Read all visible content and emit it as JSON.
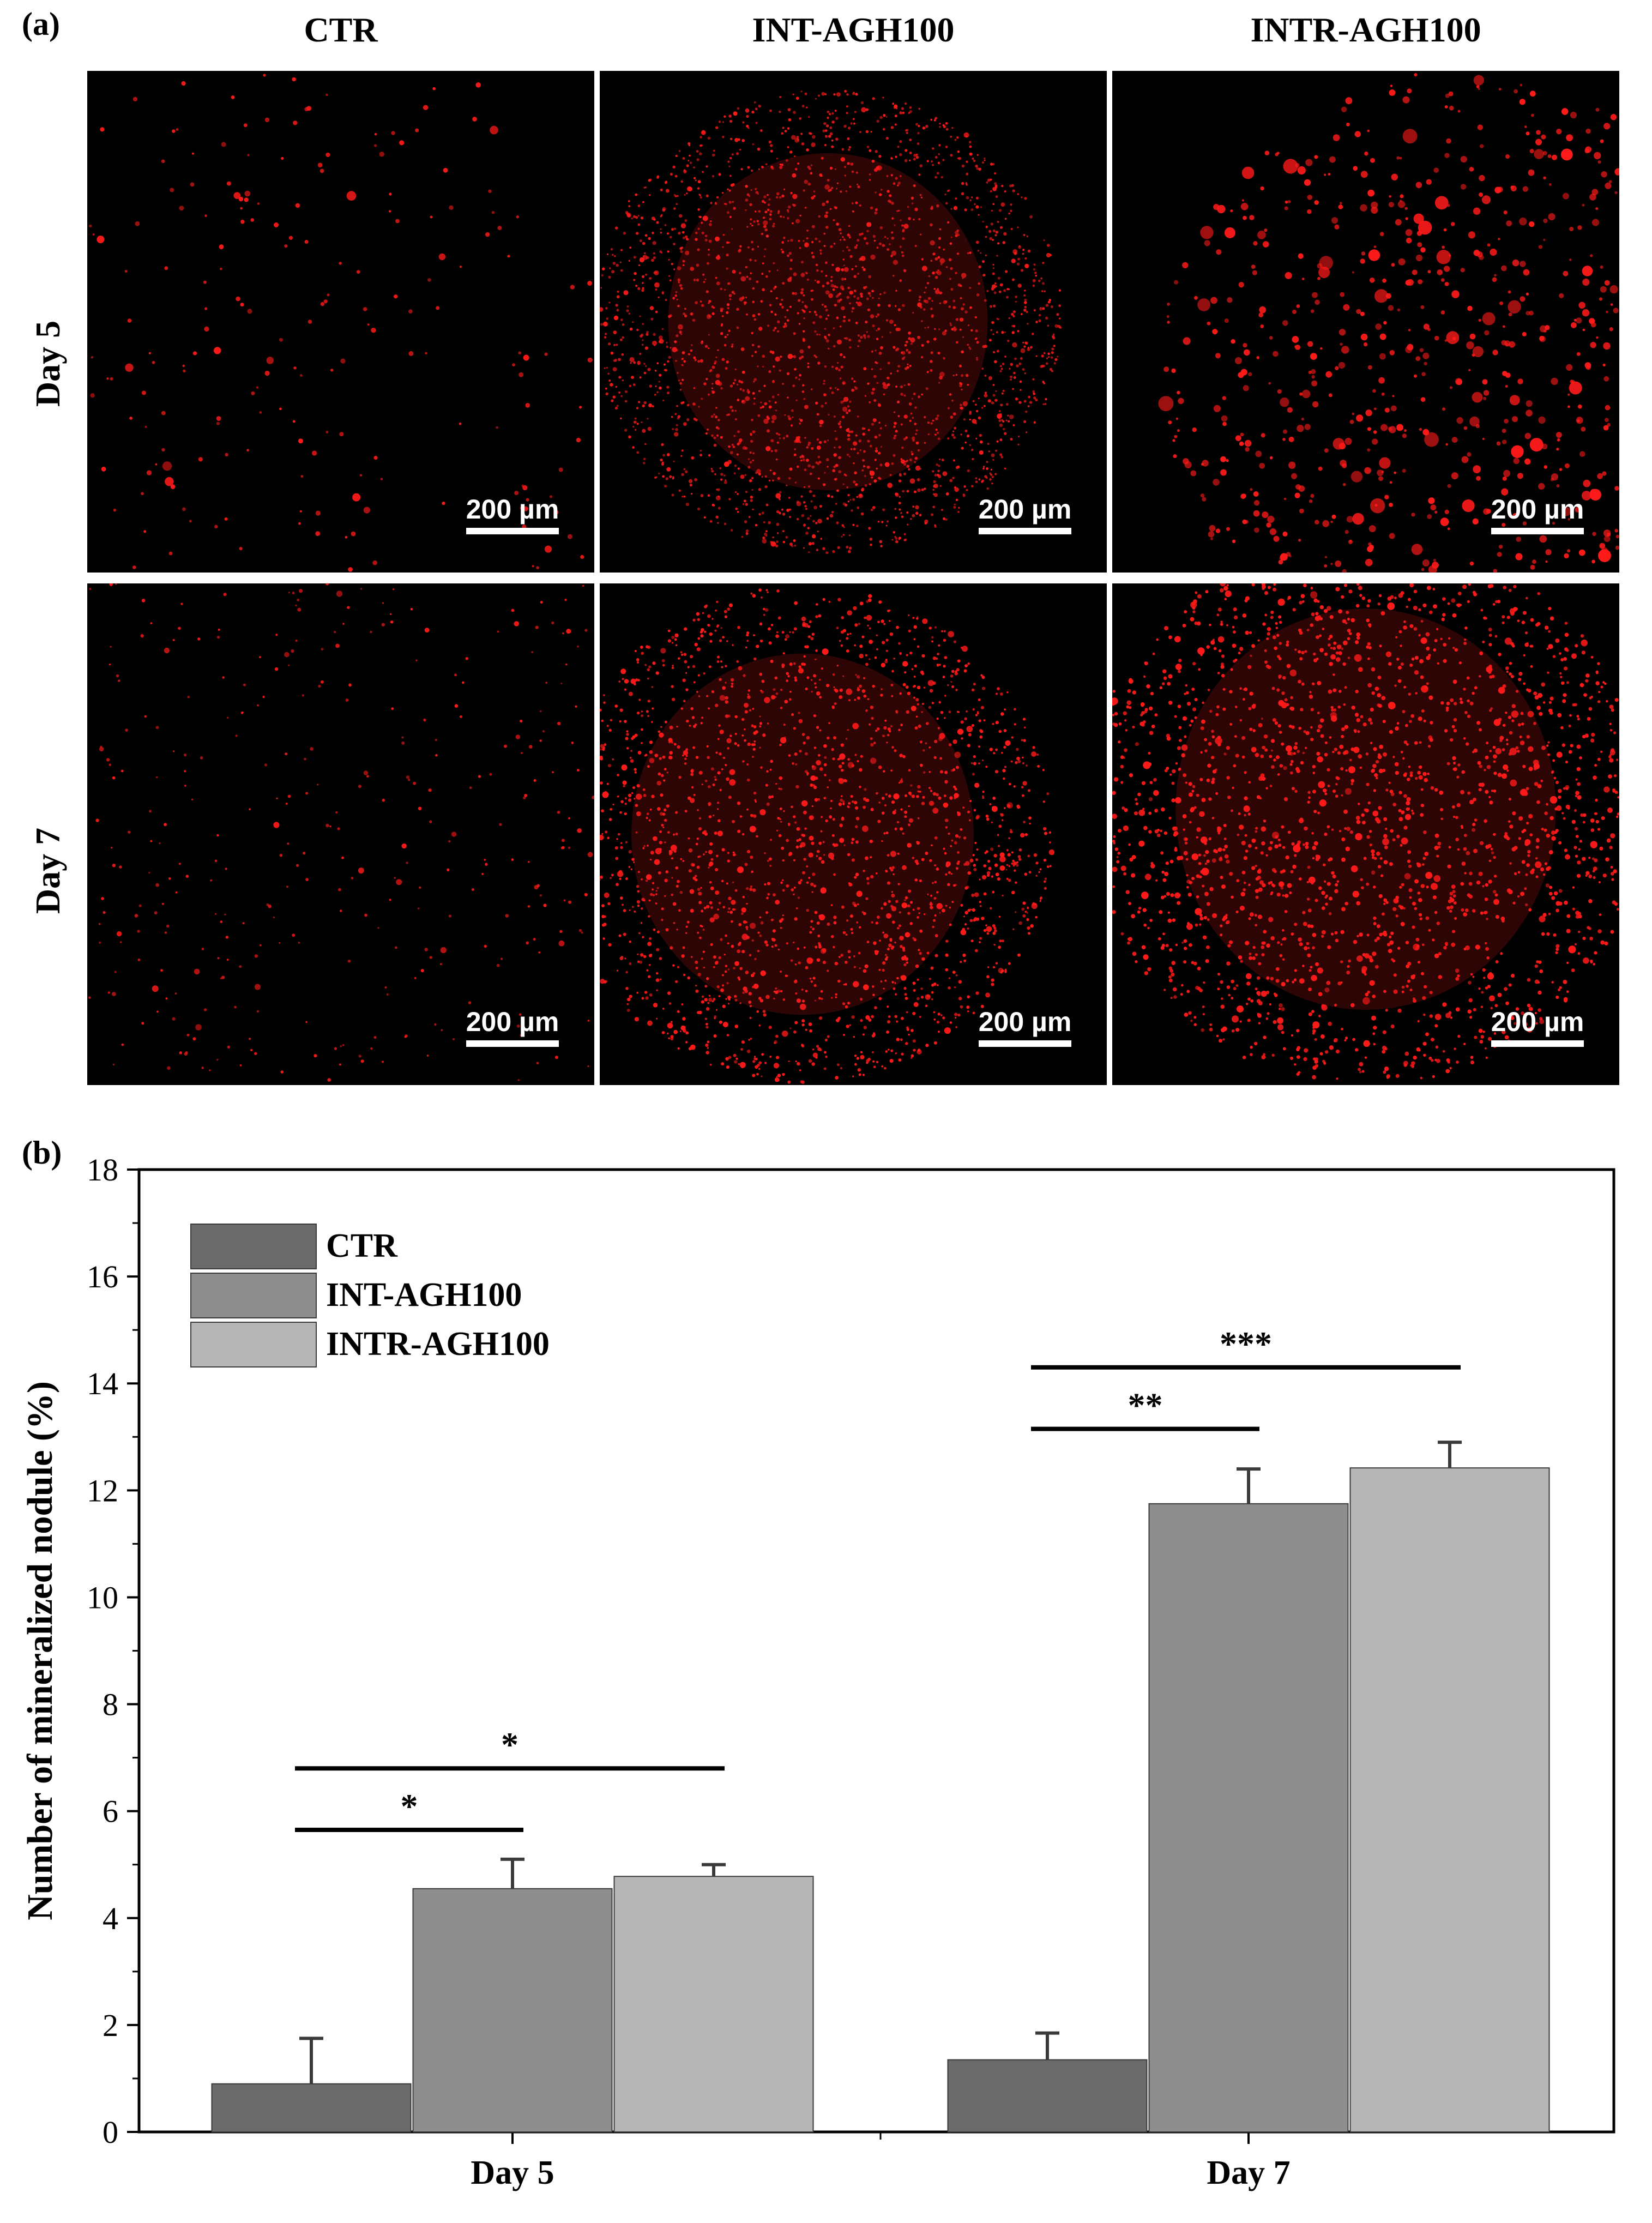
{
  "panel_a": {
    "label": "(a)",
    "columns": [
      "CTR",
      "INT-AGH100",
      "INTR-AGH100"
    ],
    "rows": [
      "Day 5",
      "Day 7"
    ],
    "scale_bar": "200 µm",
    "fluorescence_color": "#ff1a1a"
  },
  "panel_b": {
    "label": "(b)"
  },
  "chart_data": {
    "type": "bar",
    "categories": [
      "Day 5",
      "Day 7"
    ],
    "series": [
      {
        "name": "CTR",
        "values": [
          0.9,
          1.35
        ],
        "errors": [
          0.85,
          0.5
        ],
        "color": "#6b6b6b"
      },
      {
        "name": "INT-AGH100",
        "values": [
          4.55,
          11.75
        ],
        "errors": [
          0.55,
          0.65
        ],
        "color": "#8e8e8e"
      },
      {
        "name": "INTR-AGH100",
        "values": [
          4.78,
          12.42
        ],
        "errors": [
          0.22,
          0.48
        ],
        "color": "#b6b6b6"
      }
    ],
    "ylabel": "Number of mineralized nodule (%)",
    "xlabel": "",
    "ylim": [
      0,
      18
    ],
    "yticks": [
      0,
      2,
      4,
      6,
      8,
      10,
      12,
      14,
      16,
      18
    ],
    "legend_position": "top-left",
    "significance": [
      {
        "category": "Day 5",
        "from": "CTR",
        "to": "INT-AGH100",
        "label": "*"
      },
      {
        "category": "Day 5",
        "from": "CTR",
        "to": "INTR-AGH100",
        "label": "*"
      },
      {
        "category": "Day 7",
        "from": "CTR",
        "to": "INT-AGH100",
        "label": "**"
      },
      {
        "category": "Day 7",
        "from": "CTR",
        "to": "INTR-AGH100",
        "label": "***"
      }
    ]
  }
}
